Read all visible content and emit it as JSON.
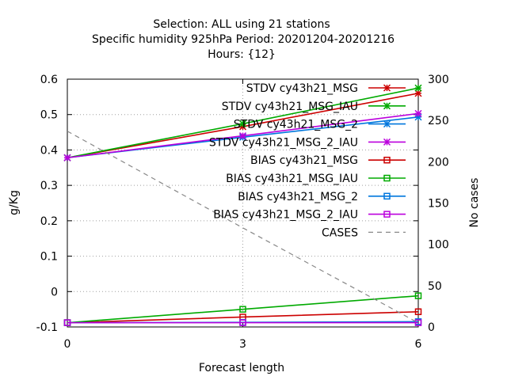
{
  "chart_data": {
    "type": "line",
    "title_lines": [
      "Selection: ALL using    21 stations",
      "Specific humidity 925hPa   Period: 20201204-20201216",
      "Hours: {12}"
    ],
    "xlabel": "Forecast length",
    "ylabel": "g/Kg",
    "y2label": "No cases",
    "x": [
      0,
      3,
      6
    ],
    "xticks": [
      0,
      3,
      6
    ],
    "xlim": [
      0,
      6
    ],
    "ylim": [
      -0.1,
      0.6
    ],
    "yticks": [
      -0.1,
      0,
      0.1,
      0.2,
      0.3,
      0.4,
      0.5,
      0.6
    ],
    "y2lim": [
      0,
      300
    ],
    "y2ticks": [
      0,
      50,
      100,
      150,
      200,
      250,
      300
    ],
    "grid": true,
    "legend_position": "top-right",
    "series": [
      {
        "name": "STDV cy43h21_MSG",
        "color": "#cc0000",
        "marker": "x",
        "axis": "y",
        "values": [
          0.378,
          0.466,
          0.56
        ]
      },
      {
        "name": "STDV cy43h21_MSG_IAU",
        "color": "#00aa00",
        "marker": "x",
        "axis": "y",
        "values": [
          0.378,
          0.474,
          0.575
        ]
      },
      {
        "name": "STDV cy43h21_MSG_2",
        "color": "#0077dd",
        "marker": "x",
        "axis": "y",
        "values": [
          0.378,
          0.436,
          0.493
        ]
      },
      {
        "name": "STDV cy43h21_MSG_2_IAU",
        "color": "#bb00dd",
        "marker": "x",
        "axis": "y",
        "values": [
          0.378,
          0.44,
          0.503
        ]
      },
      {
        "name": "BIAS cy43h21_MSG",
        "color": "#cc0000",
        "marker": "square",
        "axis": "y",
        "values": [
          -0.088,
          -0.072,
          -0.057
        ]
      },
      {
        "name": "BIAS cy43h21_MSG_IAU",
        "color": "#00aa00",
        "marker": "square",
        "axis": "y",
        "values": [
          -0.088,
          -0.05,
          -0.012
        ]
      },
      {
        "name": "BIAS cy43h21_MSG_2",
        "color": "#0077dd",
        "marker": "square",
        "axis": "y",
        "values": [
          -0.088,
          -0.087,
          -0.085
        ]
      },
      {
        "name": "BIAS cy43h21_MSG_2_IAU",
        "color": "#bb00dd",
        "marker": "square",
        "axis": "y",
        "values": [
          -0.088,
          -0.088,
          -0.088
        ]
      },
      {
        "name": "CASES",
        "color": "#888888",
        "marker": "none",
        "dashed": true,
        "axis": "y2",
        "values": [
          237,
          120,
          5
        ]
      }
    ]
  }
}
